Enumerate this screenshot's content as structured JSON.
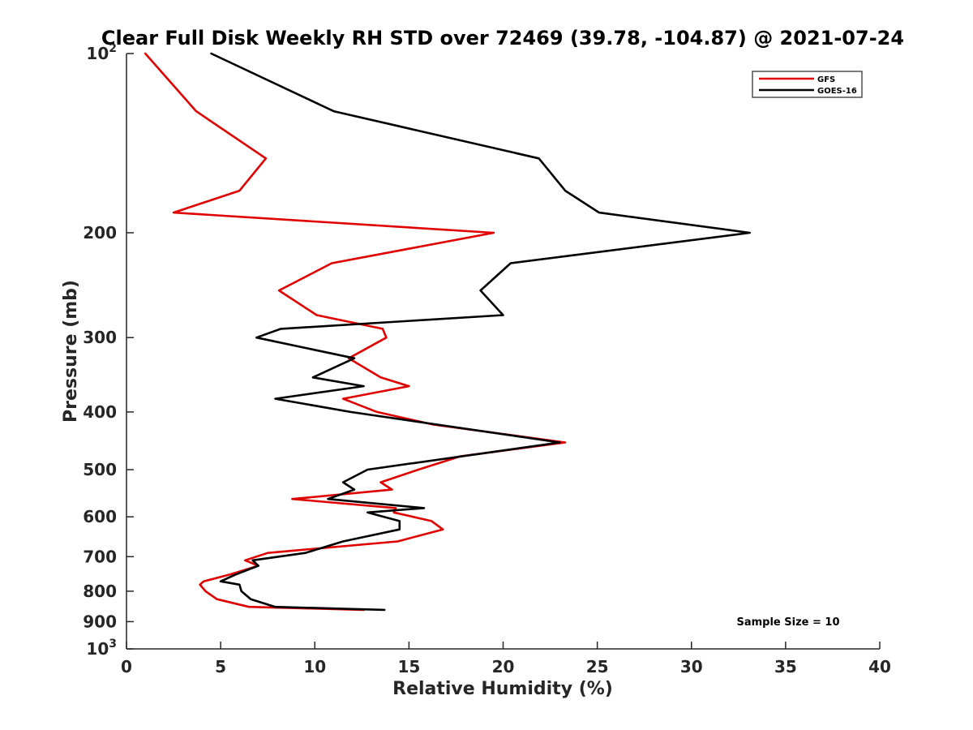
{
  "chart_data": {
    "type": "line",
    "title": "Clear Full Disk Weekly RH STD over 72469 (39.78, -104.87) @ 2021-07-24",
    "xlabel": "Relative Humidity (%)",
    "ylabel": "Pressure (mb)",
    "xlim": [
      0,
      40
    ],
    "ylim": [
      100,
      1000
    ],
    "y_scale": "log",
    "y_reversed": true,
    "grid": false,
    "legend_position": "top-right",
    "x_ticks": [
      0,
      5,
      10,
      15,
      20,
      25,
      30,
      35,
      40
    ],
    "y_ticks": [
      {
        "value": 100,
        "base": "10",
        "exp": "2"
      },
      {
        "value": 200,
        "label": "200"
      },
      {
        "value": 300,
        "label": "300"
      },
      {
        "value": 400,
        "label": "400"
      },
      {
        "value": 500,
        "label": "500"
      },
      {
        "value": 600,
        "label": "600"
      },
      {
        "value": 700,
        "label": "700"
      },
      {
        "value": 800,
        "label": "800"
      },
      {
        "value": 900,
        "label": "900"
      },
      {
        "value": 1000,
        "base": "10",
        "exp": "3"
      }
    ],
    "annotation": "Sample Size = 10",
    "series": [
      {
        "name": "GFS",
        "color": "#e00000",
        "points": [
          [
            1.0,
            100
          ],
          [
            3.7,
            125
          ],
          [
            7.4,
            150
          ],
          [
            6.0,
            170
          ],
          [
            2.5,
            185
          ],
          [
            19.5,
            200
          ],
          [
            10.9,
            225
          ],
          [
            8.1,
            250
          ],
          [
            10.1,
            275
          ],
          [
            13.6,
            290
          ],
          [
            13.8,
            300
          ],
          [
            11.8,
            325
          ],
          [
            13.5,
            350
          ],
          [
            15.0,
            362
          ],
          [
            11.5,
            380
          ],
          [
            13.3,
            400
          ],
          [
            16.3,
            420
          ],
          [
            23.3,
            450
          ],
          [
            17.7,
            475
          ],
          [
            15.5,
            500
          ],
          [
            13.5,
            525
          ],
          [
            14.1,
            540
          ],
          [
            8.8,
            560
          ],
          [
            14.3,
            580
          ],
          [
            14.2,
            590
          ],
          [
            16.2,
            610
          ],
          [
            16.8,
            630
          ],
          [
            14.4,
            660
          ],
          [
            7.5,
            690
          ],
          [
            6.3,
            710
          ],
          [
            7.0,
            725
          ],
          [
            5.5,
            750
          ],
          [
            4.1,
            770
          ],
          [
            3.9,
            780
          ],
          [
            4.2,
            800
          ],
          [
            4.8,
            825
          ],
          [
            6.5,
            850
          ],
          [
            12.6,
            860
          ]
        ]
      },
      {
        "name": "GOES-16",
        "color": "#000000",
        "points": [
          [
            4.5,
            100
          ],
          [
            11.0,
            125
          ],
          [
            21.9,
            150
          ],
          [
            23.3,
            170
          ],
          [
            25.1,
            185
          ],
          [
            33.1,
            200
          ],
          [
            20.4,
            225
          ],
          [
            18.8,
            250
          ],
          [
            20.0,
            275
          ],
          [
            8.2,
            290
          ],
          [
            6.9,
            300
          ],
          [
            12.1,
            325
          ],
          [
            9.9,
            350
          ],
          [
            12.6,
            362
          ],
          [
            7.9,
            380
          ],
          [
            11.9,
            400
          ],
          [
            23.0,
            450
          ],
          [
            12.8,
            500
          ],
          [
            11.5,
            525
          ],
          [
            12.1,
            540
          ],
          [
            10.7,
            560
          ],
          [
            15.8,
            580
          ],
          [
            12.8,
            590
          ],
          [
            14.5,
            610
          ],
          [
            14.5,
            630
          ],
          [
            11.5,
            660
          ],
          [
            9.5,
            690
          ],
          [
            6.7,
            710
          ],
          [
            7.0,
            725
          ],
          [
            5.8,
            750
          ],
          [
            5.0,
            770
          ],
          [
            6.0,
            780
          ],
          [
            6.1,
            800
          ],
          [
            6.6,
            825
          ],
          [
            7.9,
            850
          ],
          [
            13.7,
            860
          ]
        ]
      }
    ]
  }
}
